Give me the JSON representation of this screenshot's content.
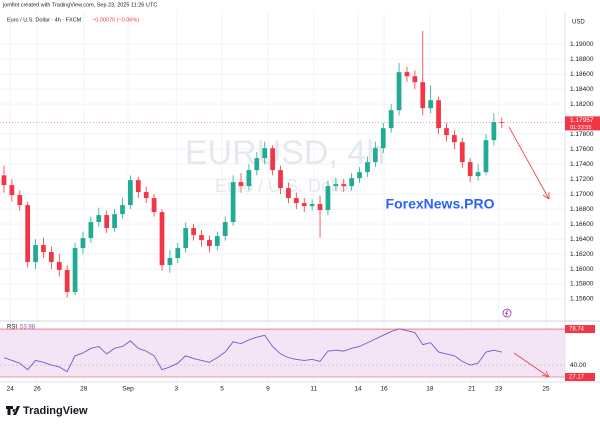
{
  "header": {
    "credit": "jomfint created with TradingView.com, Sep 23, 2025 11:26 UTC",
    "symbol": "Euro / U.S. Dollar · 4h · FXCM",
    "change": "−0.00070 (−0.06%)",
    "currency": "USD"
  },
  "watermark": {
    "symbol": "EURUSD, 4h",
    "name": "Euro / U.S. Dollar"
  },
  "annotation": "ForexNews.PRO",
  "footer": {
    "logo": "TradingView"
  },
  "chart_data": [
    {
      "type": "candlestick",
      "open": [
        1.1725,
        1.1712,
        1.16987,
        1.16853,
        1.16093,
        1.1632,
        1.16227,
        1.16093,
        1.15987,
        1.15693,
        1.1628,
        1.16413,
        1.16627,
        1.1672,
        1.16547,
        1.16733,
        1.16853,
        1.17187,
        1.17027,
        1.16947,
        1.1676,
        1.16053,
        1.16147,
        1.1628,
        1.16547,
        1.16453,
        1.16387,
        1.16307,
        1.1644,
        1.16627,
        1.1716,
        1.17107,
        1.1732,
        1.1748,
        1.17613,
        1.1732,
        1.1708,
        1.16947,
        1.1688,
        1.1684,
        1.16867,
        1.16787,
        1.17107,
        1.17133,
        1.17107,
        1.17213,
        1.17293,
        1.17427,
        1.17613,
        1.1788,
        1.1812,
        1.18627,
        1.18573,
        1.18493,
        1.18147,
        1.18253,
        1.1788,
        1.17787,
        1.17693,
        1.17427,
        1.1724,
        1.17293,
        1.1772,
        1.1796
      ],
      "high": [
        1.1738,
        1.172,
        1.1705,
        1.169,
        1.164,
        1.1642,
        1.163,
        1.162,
        1.1605,
        1.1635,
        1.165,
        1.167,
        1.1682,
        1.1678,
        1.168,
        1.1695,
        1.1725,
        1.1723,
        1.171,
        1.17,
        1.168,
        1.1625,
        1.1635,
        1.1662,
        1.166,
        1.1652,
        1.1645,
        1.165,
        1.167,
        1.1725,
        1.1728,
        1.174,
        1.1756,
        1.177,
        1.1765,
        1.1738,
        1.1715,
        1.1702,
        1.1695,
        1.1693,
        1.1698,
        1.1718,
        1.1722,
        1.172,
        1.1728,
        1.1736,
        1.175,
        1.177,
        1.1795,
        1.182,
        1.1875,
        1.187,
        1.1865,
        1.1918,
        1.1845,
        1.183,
        1.1795,
        1.1785,
        1.1775,
        1.1748,
        1.174,
        1.178,
        1.1808,
        1.1802
      ],
      "low": [
        1.1702,
        1.169,
        1.1678,
        1.1602,
        1.16,
        1.1615,
        1.16,
        1.159,
        1.1562,
        1.1565,
        1.162,
        1.1635,
        1.1656,
        1.1648,
        1.165,
        1.1668,
        1.168,
        1.1695,
        1.1688,
        1.167,
        1.1598,
        1.1595,
        1.1608,
        1.1622,
        1.1638,
        1.163,
        1.1622,
        1.1625,
        1.1638,
        1.1658,
        1.1702,
        1.1705,
        1.1725,
        1.174,
        1.1725,
        1.17,
        1.1688,
        1.168,
        1.1676,
        1.1678,
        1.1642,
        1.1672,
        1.1704,
        1.1703,
        1.1705,
        1.1715,
        1.1723,
        1.1736,
        1.1755,
        1.1782,
        1.1805,
        1.185,
        1.184,
        1.1805,
        1.1808,
        1.178,
        1.177,
        1.176,
        1.1735,
        1.1716,
        1.1718,
        1.1725,
        1.1765,
        1.1788
      ],
      "close": [
        1.1712,
        1.16987,
        1.16853,
        1.16093,
        1.1632,
        1.16227,
        1.16093,
        1.15987,
        1.15693,
        1.1628,
        1.16413,
        1.16627,
        1.1672,
        1.16547,
        1.16733,
        1.16853,
        1.17187,
        1.17027,
        1.16947,
        1.1676,
        1.16053,
        1.16147,
        1.1628,
        1.16547,
        1.16453,
        1.16387,
        1.16307,
        1.1644,
        1.16627,
        1.1716,
        1.17107,
        1.1732,
        1.1748,
        1.17613,
        1.1732,
        1.1708,
        1.16947,
        1.1688,
        1.1684,
        1.16867,
        1.16787,
        1.17107,
        1.17133,
        1.17107,
        1.17213,
        1.17293,
        1.17427,
        1.17613,
        1.1788,
        1.1812,
        1.18627,
        1.18573,
        1.18493,
        1.18147,
        1.18253,
        1.1788,
        1.17787,
        1.17693,
        1.17427,
        1.1724,
        1.17293,
        1.1772,
        1.1796,
        1.17957
      ],
      "colors": {
        "up": "#22ab94",
        "down": "#f23645"
      },
      "ylim": [
        1.1532,
        1.1939
      ],
      "yticks": [
        {
          "value": 1.156,
          "label": "1.15600"
        },
        {
          "value": 1.158,
          "label": "1.15800"
        },
        {
          "value": 1.16,
          "label": "1.16000"
        },
        {
          "value": 1.162,
          "label": "1.16200"
        },
        {
          "value": 1.164,
          "label": "1.16400"
        },
        {
          "value": 1.166,
          "label": "1.16600"
        },
        {
          "value": 1.168,
          "label": "1.16800"
        },
        {
          "value": 1.17,
          "label": "1.17000"
        },
        {
          "value": 1.172,
          "label": "1.17200"
        },
        {
          "value": 1.174,
          "label": "1.17400"
        },
        {
          "value": 1.176,
          "label": "1.17600"
        },
        {
          "value": 1.178,
          "label": "1.17800"
        },
        {
          "value": 1.182,
          "label": "1.18200"
        },
        {
          "value": 1.184,
          "label": "1.18400"
        },
        {
          "value": 1.186,
          "label": "1.18600"
        },
        {
          "value": 1.188,
          "label": "1.18800"
        },
        {
          "value": 1.19,
          "label": "1.19000"
        }
      ],
      "xlim": [
        -0.5,
        71
      ],
      "xticks": [
        {
          "value": 0.8,
          "label": "24"
        },
        {
          "value": 4.2,
          "label": "26"
        },
        {
          "value": 10.1,
          "label": "28"
        },
        {
          "value": 15.7,
          "label": "Sep"
        },
        {
          "value": 21.8,
          "label": "3"
        },
        {
          "value": 27.6,
          "label": "5"
        },
        {
          "value": 33.4,
          "label": "9"
        },
        {
          "value": 39.2,
          "label": "11"
        },
        {
          "value": 44.8,
          "label": "14"
        },
        {
          "value": 48.1,
          "label": "16"
        },
        {
          "value": 53.9,
          "label": "18"
        },
        {
          "value": 59.2,
          "label": "21"
        },
        {
          "value": 62.6,
          "label": "23"
        },
        {
          "value": 68.6,
          "label": "25"
        }
      ],
      "countdown": "01:33:55",
      "grid": true
    },
    {
      "type": "line",
      "series": [
        {
          "name": "RSI",
          "color": "#7e57c2",
          "values": [
            48,
            45,
            42,
            35,
            45,
            43,
            40,
            38,
            33,
            50,
            53,
            58,
            60,
            52,
            58,
            60,
            66,
            58,
            55,
            50,
            35,
            38,
            42,
            50,
            47,
            45,
            43,
            48,
            54,
            65,
            63,
            67,
            70,
            72,
            60,
            52,
            48,
            46,
            45,
            46,
            44,
            55,
            56,
            55,
            58,
            60,
            64,
            68,
            72,
            76,
            79,
            77,
            75,
            62,
            64,
            54,
            52,
            50,
            44,
            40,
            42,
            54,
            56,
            53.98
          ]
        }
      ],
      "ylim": [
        21.8,
        86.3
      ],
      "yticks": [
        {
          "value": 40,
          "label": "40.00"
        }
      ],
      "levels": [
        78.74,
        27.17
      ],
      "band_color": "#f3e5f5"
    }
  ]
}
